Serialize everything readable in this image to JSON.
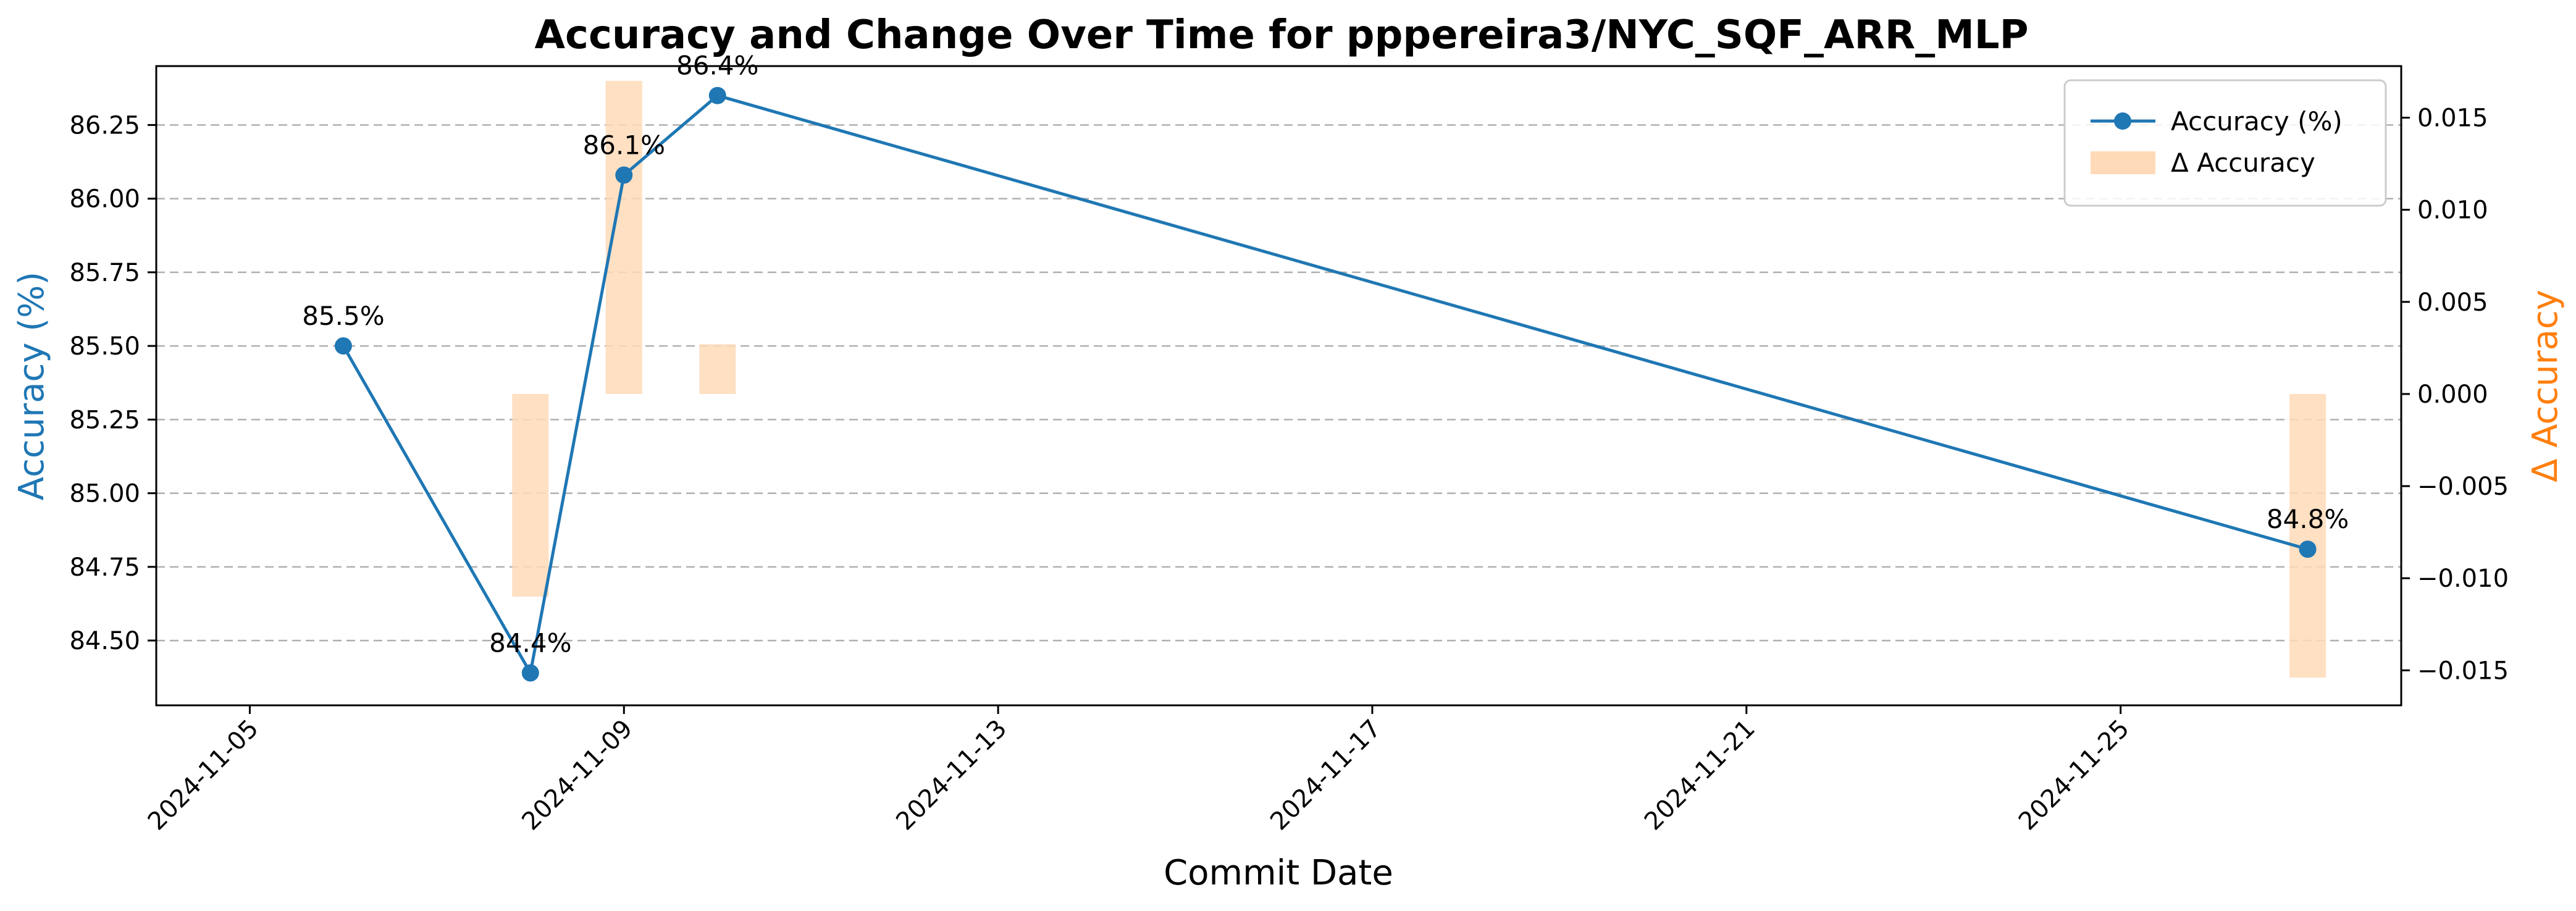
{
  "chart_data": {
    "type": "line",
    "title": "Accuracy and Change Over Time for pppereira3/NYC_SQF_ARR_MLP",
    "xlabel": "Commit Date",
    "ylabel": "Accuracy (%)",
    "y2label": "Δ Accuracy",
    "x_ticks": [
      "2024-11-05",
      "2024-11-09",
      "2024-11-13",
      "2024-11-17",
      "2024-11-21",
      "2024-11-25"
    ],
    "x_range": [
      "2024-11-04",
      "2024-11-28"
    ],
    "y_ticks": [
      "84.50",
      "84.75",
      "85.00",
      "85.25",
      "85.50",
      "85.75",
      "86.00",
      "86.25"
    ],
    "y_range": [
      84.28,
      86.45
    ],
    "y2_ticks": [
      "−0.015",
      "−0.010",
      "−0.005",
      "0.000",
      "0.005",
      "0.010",
      "0.015"
    ],
    "y2_range": [
      -0.0169,
      0.0178
    ],
    "grid": true,
    "legend_position": "top-right",
    "series": [
      {
        "name": "Accuracy (%)",
        "type": "line",
        "color": "#1f77b4",
        "x": [
          "2024-11-06 00:00",
          "2024-11-08 00:00",
          "2024-11-09 00:00",
          "2024-11-10 00:00",
          "2024-11-27 00:00"
        ],
        "values": [
          85.5,
          84.39,
          86.08,
          86.35,
          84.81
        ],
        "labels": [
          "85.5%",
          "84.4%",
          "86.1%",
          "86.4%",
          "84.8%"
        ]
      },
      {
        "name": "Δ Accuracy",
        "type": "bar",
        "axis": "right",
        "color": "#ffdab9",
        "x": [
          "2024-11-08 00:00",
          "2024-11-09 00:00",
          "2024-11-10 00:00",
          "2024-11-27 00:00"
        ],
        "values": [
          -0.011,
          0.017,
          0.0027,
          -0.0154
        ]
      }
    ]
  }
}
